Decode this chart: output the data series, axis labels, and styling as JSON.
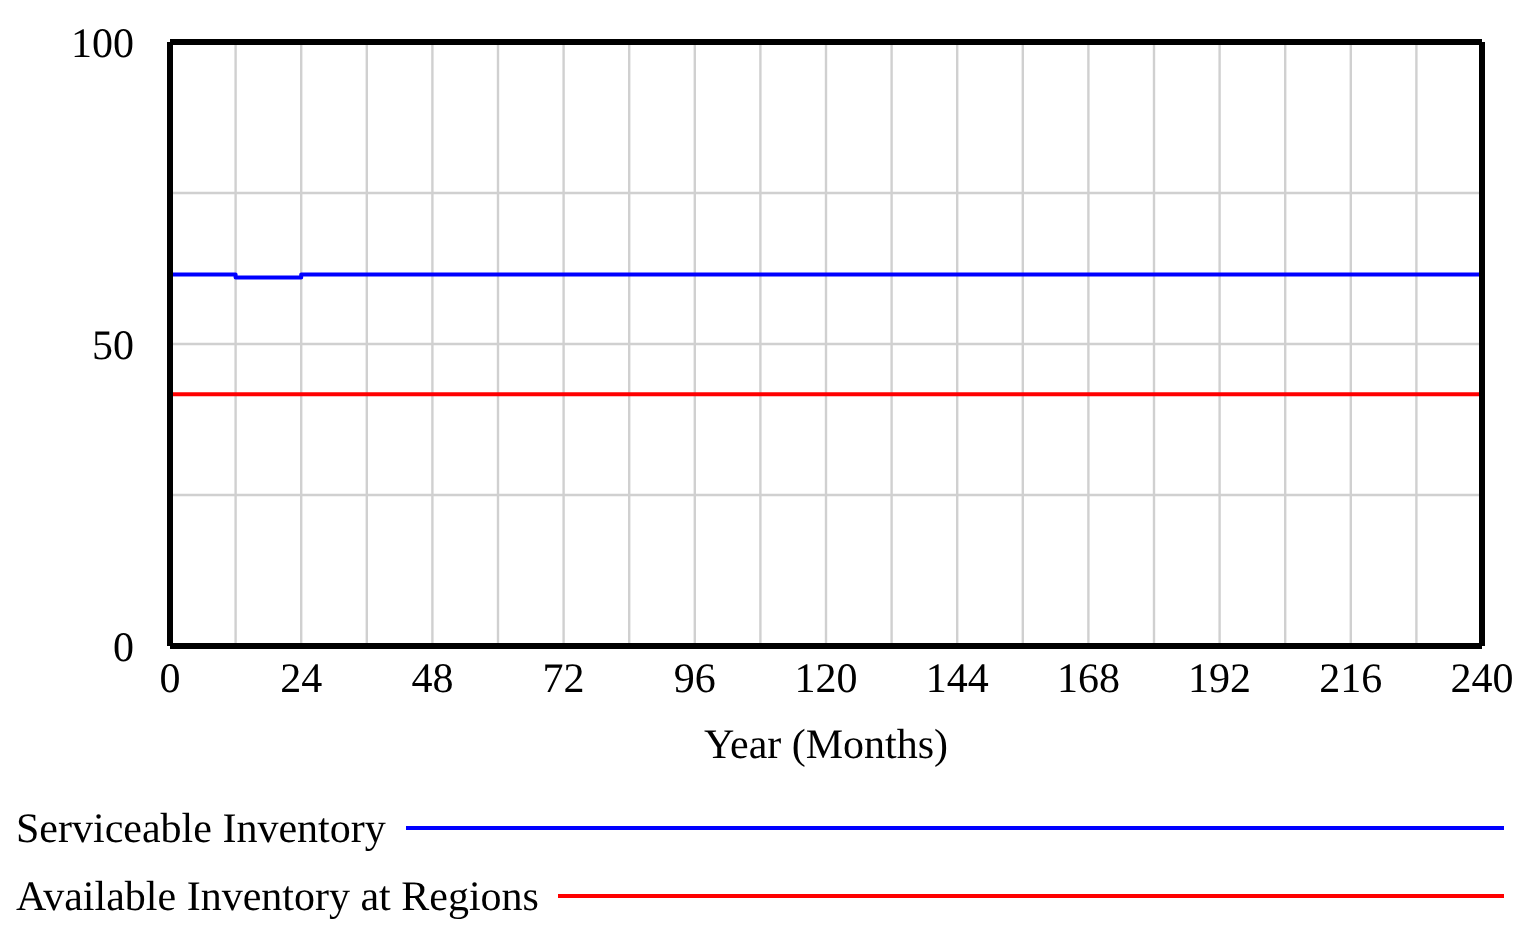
{
  "chart_data": {
    "type": "line",
    "xlabel": "Year (Months)",
    "xlim": [
      0,
      240
    ],
    "xticks": [
      0,
      {
        "value": 12,
        "label": null
      },
      24,
      {
        "value": 36,
        "label": null
      },
      48,
      {
        "value": 60,
        "label": null
      },
      72,
      {
        "value": 84,
        "label": null
      },
      96,
      {
        "value": 108,
        "label": null
      },
      120,
      {
        "value": 132,
        "label": null
      },
      144,
      {
        "value": 156,
        "label": null
      },
      168,
      {
        "value": 180,
        "label": null
      },
      192,
      {
        "value": 204,
        "label": null
      },
      216,
      {
        "value": 228,
        "label": null
      },
      240
    ],
    "ylim": [
      0,
      100
    ],
    "yticks": [
      0,
      {
        "value": 25,
        "label": null
      },
      50,
      {
        "value": 75,
        "label": null
      },
      100
    ],
    "grid": true,
    "legend": "bottom",
    "marker": "none",
    "line_style": "solid",
    "series": [
      {
        "name": "Serviceable Inventory",
        "color": "#0000ff",
        "x": [
          0,
          12,
          12,
          24,
          24,
          240
        ],
        "values": [
          61.5,
          61.5,
          61,
          61,
          61.5,
          61.5
        ]
      },
      {
        "name": "Available Inventory at Regions",
        "color": "#ff0000",
        "x": [
          0,
          240
        ],
        "values": [
          41.7,
          41.7
        ]
      }
    ]
  }
}
